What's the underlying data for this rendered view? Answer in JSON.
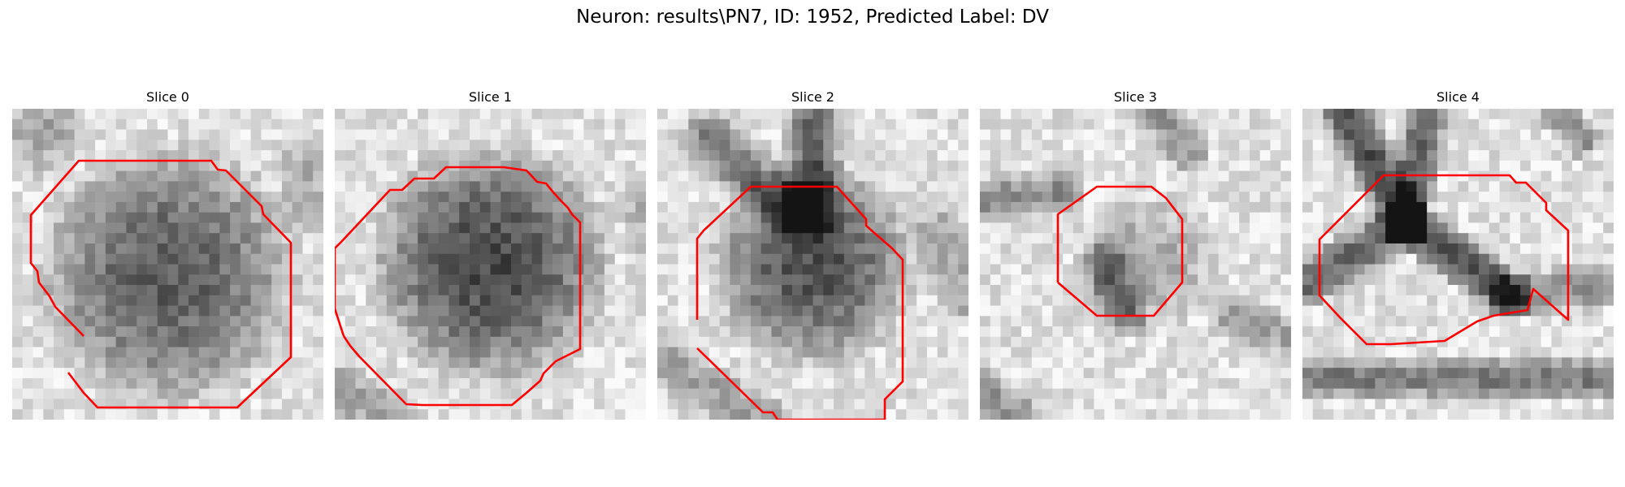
{
  "figure": {
    "title": "Neuron: results\\PN7, ID: 1952, Predicted Label: DV",
    "outline_color": "#ff0000"
  },
  "panels": [
    {
      "title": "Slice 0",
      "pattern": "big-dark-blob"
    },
    {
      "title": "Slice 1",
      "pattern": "very-dark-blob"
    },
    {
      "title": "Slice 2",
      "pattern": "dark-cross"
    },
    {
      "title": "Slice 3",
      "pattern": "light-grainy"
    },
    {
      "title": "Slice 4",
      "pattern": "dark-x-membranes"
    }
  ]
}
